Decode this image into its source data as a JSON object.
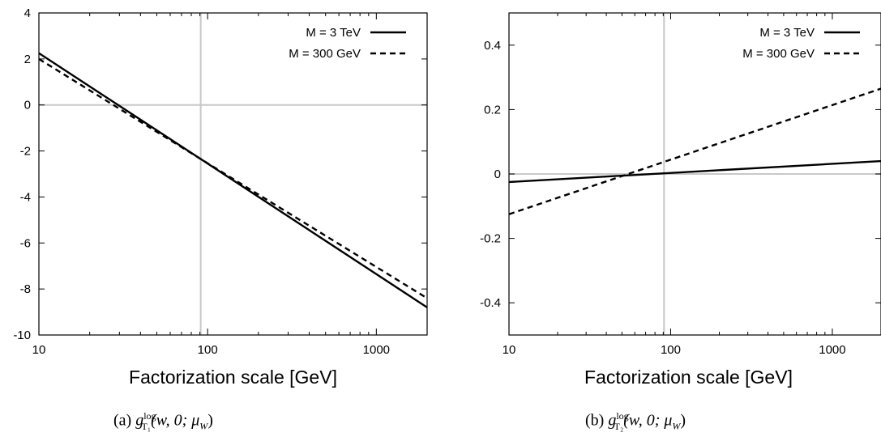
{
  "chart_data": [
    {
      "id": "a",
      "type": "line",
      "xlabel": "Factorization scale [GeV]",
      "ylabel": "",
      "x_scale": "log",
      "xlim": [
        10,
        2000
      ],
      "ylim": [
        -10,
        4
      ],
      "x_ticks": [
        10,
        100,
        1000
      ],
      "x_tick_labels": [
        "10",
        "100",
        "1000"
      ],
      "y_ticks": [
        -10,
        -8,
        -6,
        -4,
        -2,
        0,
        2,
        4
      ],
      "y_tick_labels": [
        "-10",
        "-8",
        "-6",
        "-4",
        "-2",
        "0",
        "2",
        "4"
      ],
      "reference_lines": {
        "vertical_x": 91,
        "horizontal_y": 0,
        "color": "#c8c8c8"
      },
      "legend_position": "top-right",
      "series": [
        {
          "name": "M = 3 TeV",
          "style": "solid",
          "x": [
            10,
            91,
            2000
          ],
          "y": [
            2.25,
            -2.35,
            -8.8
          ]
        },
        {
          "name": "M = 300 GeV",
          "style": "dashed",
          "x": [
            10,
            91,
            2000
          ],
          "y": [
            2.0,
            -2.35,
            -8.4
          ]
        }
      ],
      "caption": {
        "prefix": "(a)",
        "sub": "T₁",
        "sup": "log",
        "args": "(w, 0; μ",
        "args_sub": "W",
        "close": ")"
      }
    },
    {
      "id": "b",
      "type": "line",
      "xlabel": "Factorization scale [GeV]",
      "ylabel": "",
      "x_scale": "log",
      "xlim": [
        10,
        2000
      ],
      "ylim": [
        -0.5,
        0.5
      ],
      "x_ticks": [
        10,
        100,
        1000
      ],
      "x_tick_labels": [
        "10",
        "100",
        "1000"
      ],
      "y_ticks": [
        -0.4,
        -0.2,
        0,
        0.2,
        0.4
      ],
      "y_tick_labels": [
        "-0.4",
        "-0.2",
        "0",
        "0.2",
        "0.4"
      ],
      "reference_lines": {
        "vertical_x": 91,
        "horizontal_y": 0,
        "color": "#c8c8c8"
      },
      "legend_position": "top-right",
      "series": [
        {
          "name": "M = 3 TeV",
          "style": "solid",
          "x": [
            10,
            2000
          ],
          "y": [
            -0.025,
            0.04
          ]
        },
        {
          "name": "M = 300 GeV",
          "style": "dashed",
          "x": [
            10,
            2000
          ],
          "y": [
            -0.125,
            0.265
          ]
        }
      ],
      "caption": {
        "prefix": "(b)",
        "sub": "T₂",
        "sup": "log",
        "args": "(w, 0; μ",
        "args_sub": "W",
        "close": ")"
      }
    }
  ]
}
